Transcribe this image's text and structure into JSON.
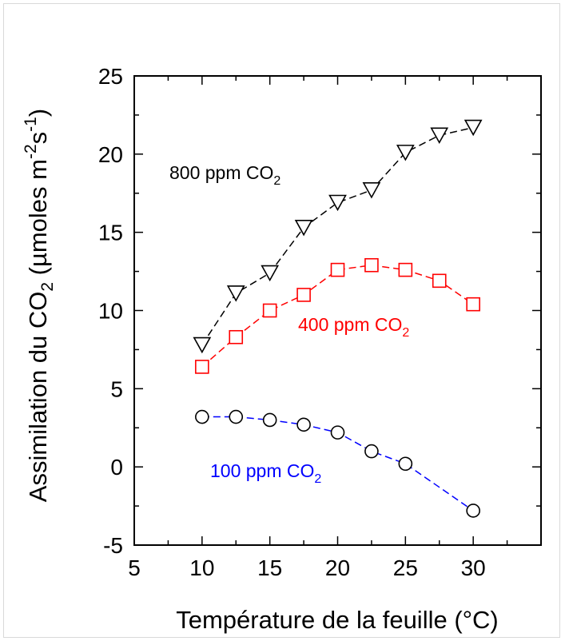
{
  "chart_data": {
    "type": "line",
    "xlabel": "Température de la feuille (°C)",
    "ylabel_parts": {
      "main": "Assimilation du CO",
      "sub": "2",
      "mid": " (µmoles m",
      "sup1": "-2",
      "s": "s",
      "sup2": "-1",
      "end": ")"
    },
    "xlim": [
      5,
      35
    ],
    "ylim": [
      -5,
      25
    ],
    "x_ticks": [
      5,
      10,
      15,
      20,
      25,
      30
    ],
    "y_ticks": [
      -5,
      0,
      5,
      10,
      15,
      20,
      25
    ],
    "grid": false,
    "series": [
      {
        "name": "800 ppm CO2",
        "label_main": "800 ppm CO",
        "label_sub": "2",
        "marker": "triangle-down",
        "line_color": "#000000",
        "marker_color": "#000000",
        "label_color": "#000000",
        "x": [
          10,
          12.5,
          15,
          17.5,
          20,
          22.5,
          25,
          27.5,
          30
        ],
        "y": [
          7.8,
          11.1,
          12.4,
          15.3,
          16.9,
          17.7,
          20.1,
          21.2,
          21.7
        ]
      },
      {
        "name": "400 ppm CO2",
        "label_main": "400 ppm CO",
        "label_sub": "2",
        "marker": "square",
        "line_color": "#ff0000",
        "marker_color": "#ff0000",
        "label_color": "#ff0000",
        "x": [
          10,
          12.5,
          15,
          17.5,
          20,
          22.5,
          25,
          27.5,
          30
        ],
        "y": [
          6.4,
          8.3,
          10.0,
          11.0,
          12.6,
          12.9,
          12.6,
          11.9,
          10.4
        ]
      },
      {
        "name": "100 ppm CO2",
        "label_main": "100 ppm CO",
        "label_sub": "2",
        "marker": "circle",
        "line_color": "#0000ff",
        "marker_color": "#000000",
        "label_color": "#0000ff",
        "x": [
          10,
          12.5,
          15,
          17.5,
          20,
          22.5,
          25,
          30
        ],
        "y": [
          3.2,
          3.2,
          3.0,
          2.7,
          2.2,
          1.0,
          0.2,
          -2.8
        ]
      }
    ]
  }
}
